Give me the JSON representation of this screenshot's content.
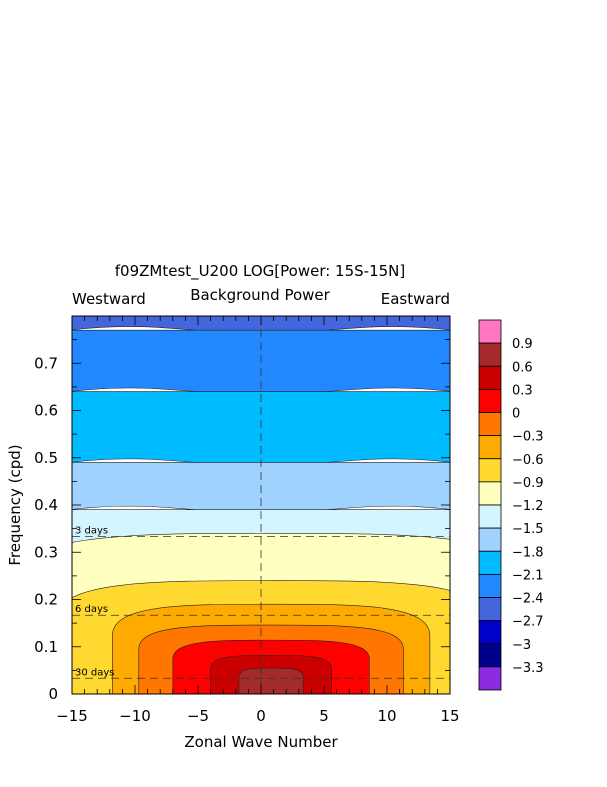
{
  "chart_data": {
    "type": "heatmap",
    "title": "f09ZMtest_U200 LOG[Power: 15S-15N]",
    "subtitle": "Background Power",
    "left_label": "Westward",
    "right_label": "Eastward",
    "xlabel": "Zonal Wave Number",
    "ylabel": "Frequency (cpd)",
    "xlim": [
      -15,
      15
    ],
    "ylim": [
      0,
      0.8
    ],
    "x_ticks": [
      "-15",
      "-10",
      "-5",
      "0",
      "5",
      "10",
      "15"
    ],
    "y_ticks": [
      "0",
      "0.1",
      "0.2",
      "0.3",
      "0.4",
      "0.5",
      "0.6",
      "0.7"
    ],
    "period_lines": [
      {
        "label": "3 days",
        "frequency": 0.3333
      },
      {
        "label": "6 days",
        "frequency": 0.1667
      },
      {
        "label": "30 days",
        "frequency": 0.0333
      }
    ],
    "colorbar": {
      "labels": [
        "0.9",
        "0.6",
        "0.3",
        "0",
        "-0.3",
        "-0.6",
        "-0.9",
        "-1.2",
        "-1.5",
        "-1.8",
        "-2.1",
        "-2.4",
        "-2.7",
        "-3",
        "-3.3"
      ],
      "colors_top_to_bottom": [
        "#ff77c0",
        "#a52a2a",
        "#cc0000",
        "#ff0000",
        "#ff7700",
        "#ffaa00",
        "#ffd830",
        "#ffffc0",
        "#d2f5ff",
        "#a0d2ff",
        "#00bbff",
        "#2288ff",
        "#4466dd",
        "#0000cc",
        "#00008b",
        "#8a2be2"
      ]
    },
    "levels_from_axis": [
      {
        "value": 0.6,
        "color": "#a52a2a",
        "dx": 0.085,
        "dy": [
          0.012,
          0.055
        ]
      },
      {
        "value": 0.3,
        "color": "#cc0000",
        "dx": 0.16,
        "dy": [
          0.012,
          0.082
        ]
      },
      {
        "value": 0.0,
        "color": "#ff0000",
        "dx": 0.26,
        "dy": [
          0.012,
          0.114
        ]
      },
      {
        "value": -0.3,
        "color": "#ff7700",
        "dx": 0.35,
        "dy": [
          0.012,
          0.146
        ]
      },
      {
        "value": -0.6,
        "color": "#ffaa00",
        "dx": 0.42,
        "dy": [
          0.012,
          0.19
        ]
      },
      {
        "value": -0.9,
        "color": "#ffd830",
        "dx": 0.57,
        "dy": [
          0.012,
          0.24
        ]
      },
      {
        "value": -1.2,
        "color": "#ffffc0",
        "dx": 0.7,
        "dy": [
          0.012,
          0.34
        ]
      }
    ],
    "bands_from_top": [
      {
        "value": -2.4,
        "color": "#4466dd",
        "lower_frequency": 0.77
      },
      {
        "value": -2.1,
        "color": "#2288ff",
        "lower_frequency": 0.64
      },
      {
        "value": -1.8,
        "color": "#00bbff",
        "lower_frequency": 0.49
      },
      {
        "value": -1.5,
        "color": "#a0d2ff",
        "lower_frequency": 0.39
      },
      {
        "value": -1.2,
        "color": "#d2f5ff",
        "lower_frequency": 0.0
      }
    ]
  }
}
